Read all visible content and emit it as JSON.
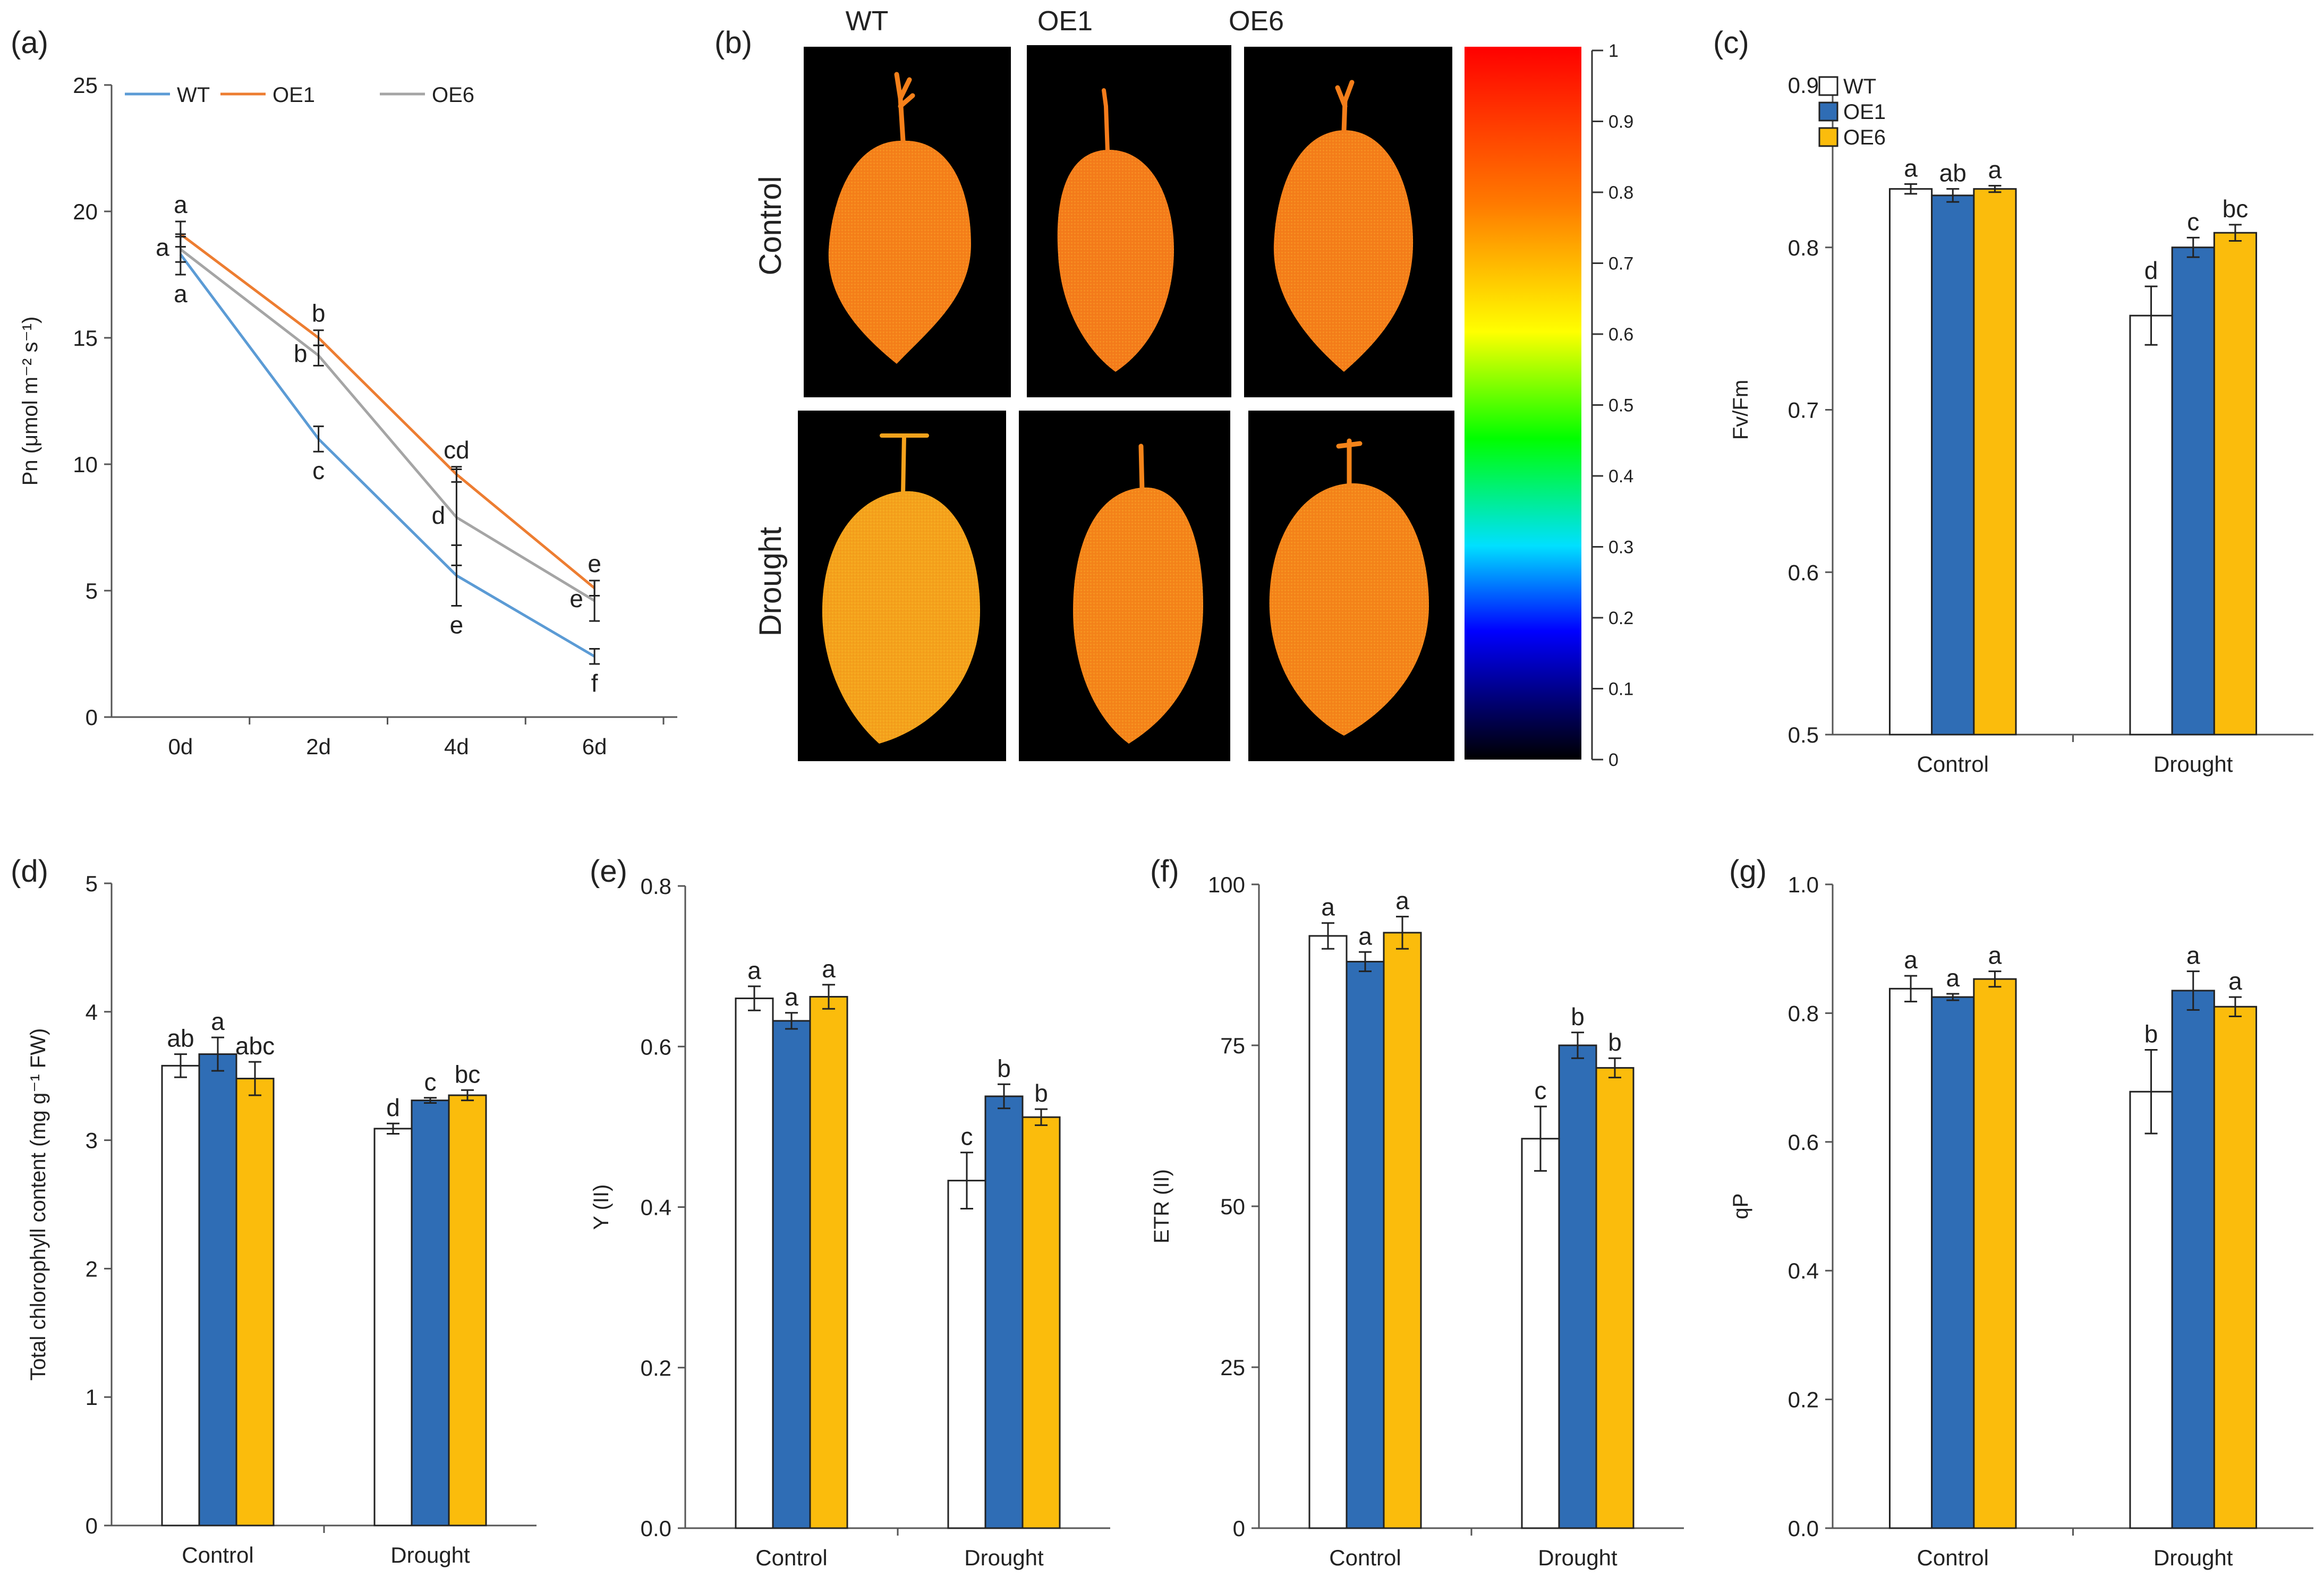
{
  "figure": {
    "colors": {
      "WT": "#ffffff",
      "OE1": "#2f6db5",
      "OE6": "#fbbc0c",
      "WT_line": "#5b9bd5",
      "OE1_line": "#ed7d31",
      "OE6_line": "#a5a5a5"
    },
    "panel_b": {
      "label": "(b)",
      "columns": [
        "WT",
        "OE1",
        "OE6"
      ],
      "rows": [
        "Control",
        "Drought"
      ],
      "scale_ticks": [
        "1",
        "0.9",
        "0.8",
        "0.7",
        "0.6",
        "0.5",
        "0.4",
        "0.3",
        "0.2",
        "0.1",
        "0"
      ],
      "leaf_colors": {
        "control": "#f5801a",
        "drought_WT": "#f4a21c",
        "drought_OE": "#f4841a"
      }
    }
  },
  "chart_data": [
    {
      "id": "a",
      "panel_label": "(a)",
      "type": "line",
      "title": "",
      "xlabel": "",
      "ylabel": "Pn (μmol m⁻² s⁻¹)",
      "categories": [
        "0d",
        "2d",
        "4d",
        "6d"
      ],
      "ylim": [
        0,
        25
      ],
      "yticks": [
        "0",
        "5",
        "10",
        "15",
        "20",
        "25"
      ],
      "legend": "top",
      "grid": false,
      "series": [
        {
          "name": "WT",
          "values": [
            18.3,
            11.0,
            5.6,
            2.4
          ],
          "errors": [
            0.8,
            0.5,
            1.2,
            0.3
          ],
          "letters": [
            "a",
            "c",
            "e",
            "f"
          ]
        },
        {
          "name": "OE1",
          "values": [
            19.1,
            15.0,
            9.6,
            5.1
          ],
          "errors": [
            0.5,
            0.3,
            0.3,
            0.3
          ],
          "letters": [
            "a",
            "b",
            "cd",
            "e"
          ]
        },
        {
          "name": "OE6",
          "values": [
            18.5,
            14.3,
            7.9,
            4.6
          ],
          "errors": [
            0.5,
            0.4,
            1.9,
            0.8
          ],
          "letters": [
            "a",
            "b",
            "d",
            "e"
          ]
        }
      ]
    },
    {
      "id": "c",
      "panel_label": "(c)",
      "type": "bar",
      "title": "",
      "xlabel": "",
      "ylabel": "Fv/Fm",
      "categories": [
        "Control",
        "Drought"
      ],
      "ylim": [
        0.5,
        0.9
      ],
      "yticks": [
        "0.5",
        "0.6",
        "0.7",
        "0.8",
        "0.9"
      ],
      "legend": "top-left",
      "grid": false,
      "series": [
        {
          "name": "WT",
          "values": [
            0.836,
            0.758
          ],
          "errors": [
            0.003,
            0.018
          ],
          "letters": [
            "a",
            "d"
          ]
        },
        {
          "name": "OE1",
          "values": [
            0.832,
            0.8
          ],
          "errors": [
            0.004,
            0.006
          ],
          "letters": [
            "ab",
            "c"
          ]
        },
        {
          "name": "OE6",
          "values": [
            0.836,
            0.809
          ],
          "errors": [
            0.002,
            0.005
          ],
          "letters": [
            "a",
            "bc"
          ]
        }
      ]
    },
    {
      "id": "d",
      "panel_label": "(d)",
      "type": "bar",
      "title": "",
      "xlabel": "",
      "ylabel": "Total chlorophyll content (mg g⁻¹ FW)",
      "categories": [
        "Control",
        "Drought"
      ],
      "ylim": [
        0,
        5
      ],
      "yticks": [
        "0",
        "1",
        "2",
        "3",
        "4",
        "5"
      ],
      "legend": "none",
      "grid": false,
      "series": [
        {
          "name": "WT",
          "values": [
            3.58,
            3.09
          ],
          "errors": [
            0.09,
            0.04
          ],
          "letters": [
            "ab",
            "d"
          ]
        },
        {
          "name": "OE1",
          "values": [
            3.67,
            3.31
          ],
          "errors": [
            0.13,
            0.02
          ],
          "letters": [
            "a",
            "c"
          ]
        },
        {
          "name": "OE6",
          "values": [
            3.48,
            3.35
          ],
          "errors": [
            0.13,
            0.04
          ],
          "letters": [
            "abc",
            "bc"
          ]
        }
      ]
    },
    {
      "id": "e",
      "panel_label": "(e)",
      "type": "bar",
      "title": "",
      "xlabel": "",
      "ylabel": "Y (II)",
      "categories": [
        "Control",
        "Drought"
      ],
      "ylim": [
        0.0,
        0.8
      ],
      "yticks": [
        "0.0",
        "0.2",
        "0.4",
        "0.6",
        "0.8"
      ],
      "legend": "none",
      "grid": false,
      "series": [
        {
          "name": "WT",
          "values": [
            0.66,
            0.433
          ],
          "errors": [
            0.015,
            0.035
          ],
          "letters": [
            "a",
            "c"
          ]
        },
        {
          "name": "OE1",
          "values": [
            0.632,
            0.538
          ],
          "errors": [
            0.01,
            0.015
          ],
          "letters": [
            "a",
            "b"
          ]
        },
        {
          "name": "OE6",
          "values": [
            0.662,
            0.512
          ],
          "errors": [
            0.015,
            0.01
          ],
          "letters": [
            "a",
            "b"
          ]
        }
      ]
    },
    {
      "id": "f",
      "panel_label": "(f)",
      "type": "bar",
      "title": "",
      "xlabel": "",
      "ylabel": "ETR (II)",
      "categories": [
        "Control",
        "Drought"
      ],
      "ylim": [
        0,
        100
      ],
      "yticks": [
        "0",
        "25",
        "50",
        "75",
        "100"
      ],
      "legend": "none",
      "grid": false,
      "series": [
        {
          "name": "WT",
          "values": [
            92.0,
            60.5
          ],
          "errors": [
            2.0,
            5.0
          ],
          "letters": [
            "a",
            "c"
          ]
        },
        {
          "name": "OE1",
          "values": [
            88.0,
            75.0
          ],
          "errors": [
            1.5,
            2.0
          ],
          "letters": [
            "a",
            "b"
          ]
        },
        {
          "name": "OE6",
          "values": [
            92.5,
            71.5
          ],
          "errors": [
            2.5,
            1.5
          ],
          "letters": [
            "a",
            "b"
          ]
        }
      ]
    },
    {
      "id": "g",
      "panel_label": "(g)",
      "type": "bar",
      "title": "",
      "xlabel": "",
      "ylabel": "qP",
      "categories": [
        "Control",
        "Drought"
      ],
      "ylim": [
        0.0,
        1.0
      ],
      "yticks": [
        "0.0",
        "0.2",
        "0.4",
        "0.6",
        "0.8",
        "1.0"
      ],
      "legend": "none",
      "grid": false,
      "series": [
        {
          "name": "WT",
          "values": [
            0.838,
            0.678
          ],
          "errors": [
            0.02,
            0.065
          ],
          "letters": [
            "a",
            "b"
          ]
        },
        {
          "name": "OE1",
          "values": [
            0.825,
            0.835
          ],
          "errors": [
            0.005,
            0.03
          ],
          "letters": [
            "a",
            "a"
          ]
        },
        {
          "name": "OE6",
          "values": [
            0.853,
            0.81
          ],
          "errors": [
            0.012,
            0.015
          ],
          "letters": [
            "a",
            "a"
          ]
        }
      ]
    }
  ]
}
